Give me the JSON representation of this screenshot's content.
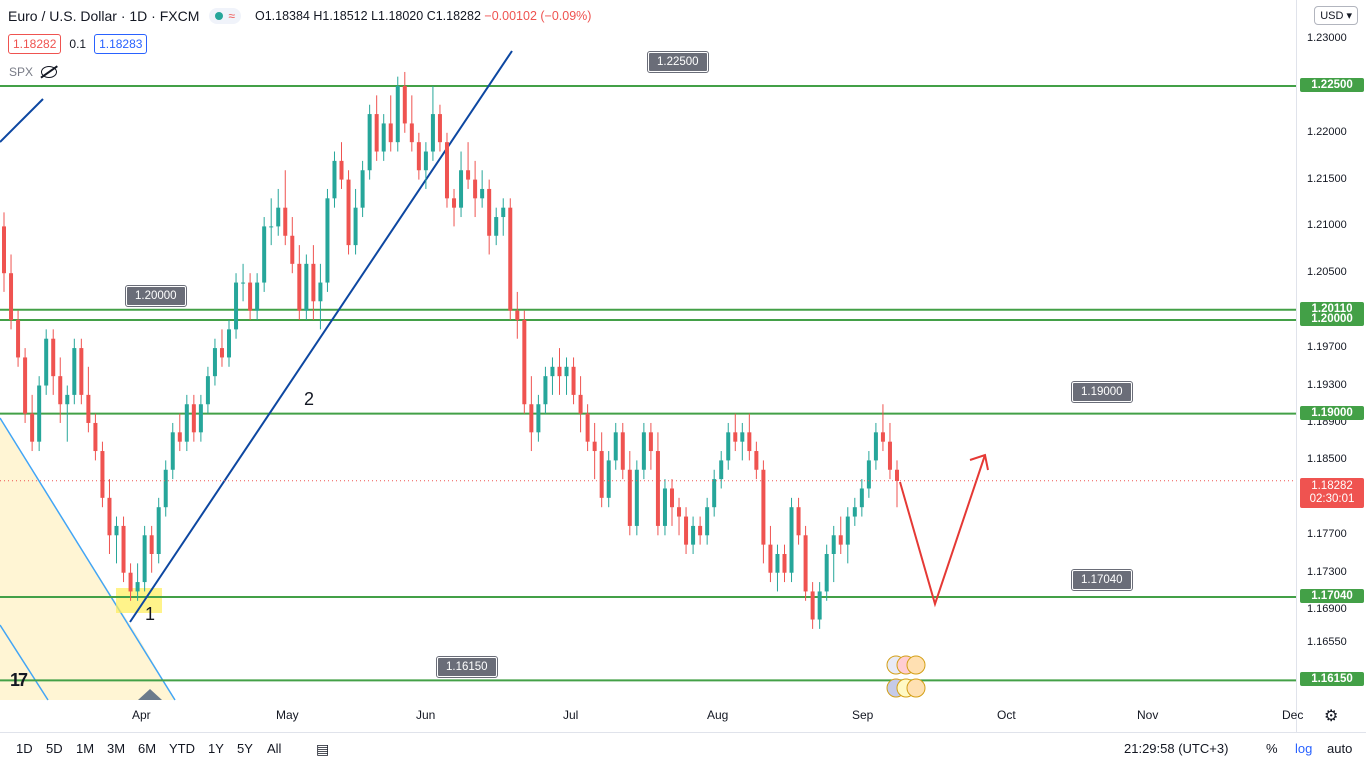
{
  "legend": {
    "title": "Euro / U.S. Dollar · 1D · FXCM",
    "open": "O1.18384",
    "high": "H1.18512",
    "low": "L1.18020",
    "close": "C1.18282",
    "change": "−0.00102 (−0.09%)",
    "sell": "1.18282",
    "spread": "0.1",
    "buy": "1.18283",
    "compare_symbol": "SPX"
  },
  "currency_select": "USD",
  "price_axis": [
    "1.23000",
    "1.22000",
    "1.21500",
    "1.21000",
    "1.20500",
    "1.19700",
    "1.19300",
    "1.18900",
    "1.18500",
    "1.17700",
    "1.17300",
    "1.16900",
    "1.16550",
    "1.16150"
  ],
  "level_tags": [
    {
      "label": "1.22500",
      "value": 1.225
    },
    {
      "label": "1.20110",
      "value": 1.2011
    },
    {
      "label": "1.20000",
      "value": 1.2
    },
    {
      "label": "1.19000",
      "value": 1.19
    },
    {
      "label": "1.17040",
      "value": 1.1704
    },
    {
      "label": "1.16150",
      "value": 1.1615
    }
  ],
  "current_price": {
    "label": "1.18282",
    "countdown": "02:30:01"
  },
  "callouts": [
    "1.22500",
    "1.20000",
    "1.19000",
    "1.17040",
    "1.16150"
  ],
  "time_axis": [
    "Apr",
    "May",
    "Jun",
    "Jul",
    "Aug",
    "Sep",
    "Oct",
    "Nov",
    "Dec"
  ],
  "wave_labels": [
    "1",
    "2"
  ],
  "bottom": {
    "timeframes": [
      "1D",
      "5D",
      "1M",
      "3M",
      "6M",
      "YTD",
      "1Y",
      "5Y",
      "All"
    ],
    "clock": "21:29:58 (UTC+3)",
    "percent": "%",
    "log": "log",
    "auto": "auto"
  },
  "logo": "17",
  "colors": {
    "up": "#26a69a",
    "down": "#ef5350",
    "level": "#43a047",
    "trend": "#0d47a1"
  },
  "chart_data": {
    "type": "candlestick",
    "y_unit": "EUR/USD",
    "ylim": [
      1.1588,
      1.2326
    ],
    "candles": [
      [
        1.21,
        1.2115,
        1.203,
        1.205
      ],
      [
        1.205,
        1.207,
        1.199,
        1.2
      ],
      [
        1.2,
        1.201,
        1.195,
        1.196
      ],
      [
        1.196,
        1.197,
        1.189,
        1.19
      ],
      [
        1.19,
        1.192,
        1.186,
        1.187
      ],
      [
        1.187,
        1.194,
        1.186,
        1.193
      ],
      [
        1.193,
        1.199,
        1.192,
        1.198
      ],
      [
        1.198,
        1.199,
        1.192,
        1.194
      ],
      [
        1.194,
        1.196,
        1.189,
        1.191
      ],
      [
        1.191,
        1.193,
        1.187,
        1.192
      ],
      [
        1.192,
        1.198,
        1.191,
        1.197
      ],
      [
        1.197,
        1.198,
        1.191,
        1.192
      ],
      [
        1.192,
        1.195,
        1.188,
        1.189
      ],
      [
        1.189,
        1.19,
        1.185,
        1.186
      ],
      [
        1.186,
        1.187,
        1.18,
        1.181
      ],
      [
        1.181,
        1.183,
        1.175,
        1.177
      ],
      [
        1.177,
        1.179,
        1.174,
        1.178
      ],
      [
        1.178,
        1.179,
        1.172,
        1.173
      ],
      [
        1.173,
        1.174,
        1.17,
        1.171
      ],
      [
        1.171,
        1.174,
        1.17,
        1.172
      ],
      [
        1.172,
        1.178,
        1.171,
        1.177
      ],
      [
        1.177,
        1.178,
        1.173,
        1.175
      ],
      [
        1.175,
        1.181,
        1.174,
        1.18
      ],
      [
        1.18,
        1.185,
        1.179,
        1.184
      ],
      [
        1.184,
        1.189,
        1.183,
        1.188
      ],
      [
        1.188,
        1.19,
        1.186,
        1.187
      ],
      [
        1.187,
        1.192,
        1.186,
        1.191
      ],
      [
        1.191,
        1.192,
        1.187,
        1.188
      ],
      [
        1.188,
        1.192,
        1.187,
        1.191
      ],
      [
        1.191,
        1.195,
        1.19,
        1.194
      ],
      [
        1.194,
        1.198,
        1.193,
        1.197
      ],
      [
        1.197,
        1.199,
        1.195,
        1.196
      ],
      [
        1.196,
        1.2,
        1.195,
        1.199
      ],
      [
        1.199,
        1.205,
        1.198,
        1.204
      ],
      [
        1.204,
        1.206,
        1.202,
        1.204
      ],
      [
        1.204,
        1.205,
        1.2,
        1.201
      ],
      [
        1.201,
        1.205,
        1.2,
        1.204
      ],
      [
        1.204,
        1.211,
        1.203,
        1.21
      ],
      [
        1.21,
        1.213,
        1.208,
        1.21
      ],
      [
        1.21,
        1.214,
        1.209,
        1.212
      ],
      [
        1.212,
        1.216,
        1.208,
        1.209
      ],
      [
        1.209,
        1.211,
        1.205,
        1.206
      ],
      [
        1.206,
        1.208,
        1.2,
        1.201
      ],
      [
        1.201,
        1.207,
        1.2,
        1.206
      ],
      [
        1.206,
        1.208,
        1.2,
        1.202
      ],
      [
        1.202,
        1.206,
        1.199,
        1.204
      ],
      [
        1.204,
        1.214,
        1.203,
        1.213
      ],
      [
        1.213,
        1.218,
        1.212,
        1.217
      ],
      [
        1.217,
        1.219,
        1.214,
        1.215
      ],
      [
        1.215,
        1.216,
        1.207,
        1.208
      ],
      [
        1.208,
        1.214,
        1.207,
        1.212
      ],
      [
        1.212,
        1.217,
        1.211,
        1.216
      ],
      [
        1.216,
        1.223,
        1.215,
        1.222
      ],
      [
        1.222,
        1.224,
        1.217,
        1.218
      ],
      [
        1.218,
        1.222,
        1.217,
        1.221
      ],
      [
        1.221,
        1.224,
        1.218,
        1.219
      ],
      [
        1.219,
        1.226,
        1.218,
        1.225
      ],
      [
        1.225,
        1.2265,
        1.22,
        1.221
      ],
      [
        1.221,
        1.224,
        1.218,
        1.219
      ],
      [
        1.219,
        1.22,
        1.215,
        1.216
      ],
      [
        1.216,
        1.219,
        1.214,
        1.218
      ],
      [
        1.218,
        1.225,
        1.217,
        1.222
      ],
      [
        1.222,
        1.223,
        1.218,
        1.219
      ],
      [
        1.219,
        1.22,
        1.212,
        1.213
      ],
      [
        1.213,
        1.214,
        1.21,
        1.212
      ],
      [
        1.212,
        1.218,
        1.211,
        1.216
      ],
      [
        1.216,
        1.219,
        1.214,
        1.215
      ],
      [
        1.215,
        1.217,
        1.211,
        1.213
      ],
      [
        1.213,
        1.216,
        1.212,
        1.214
      ],
      [
        1.214,
        1.215,
        1.207,
        1.209
      ],
      [
        1.209,
        1.212,
        1.208,
        1.211
      ],
      [
        1.211,
        1.213,
        1.209,
        1.212
      ],
      [
        1.212,
        1.213,
        1.2,
        1.201
      ],
      [
        1.201,
        1.203,
        1.198,
        1.2
      ],
      [
        1.2,
        1.201,
        1.19,
        1.191
      ],
      [
        1.191,
        1.194,
        1.186,
        1.188
      ],
      [
        1.188,
        1.192,
        1.187,
        1.191
      ],
      [
        1.191,
        1.195,
        1.19,
        1.194
      ],
      [
        1.194,
        1.196,
        1.192,
        1.195
      ],
      [
        1.195,
        1.197,
        1.192,
        1.194
      ],
      [
        1.194,
        1.196,
        1.192,
        1.195
      ],
      [
        1.195,
        1.196,
        1.191,
        1.192
      ],
      [
        1.192,
        1.194,
        1.188,
        1.19
      ],
      [
        1.19,
        1.191,
        1.186,
        1.187
      ],
      [
        1.187,
        1.189,
        1.183,
        1.186
      ],
      [
        1.186,
        1.188,
        1.18,
        1.181
      ],
      [
        1.181,
        1.186,
        1.18,
        1.185
      ],
      [
        1.185,
        1.189,
        1.184,
        1.188
      ],
      [
        1.188,
        1.189,
        1.183,
        1.184
      ],
      [
        1.184,
        1.186,
        1.177,
        1.178
      ],
      [
        1.178,
        1.185,
        1.177,
        1.184
      ],
      [
        1.184,
        1.189,
        1.183,
        1.188
      ],
      [
        1.188,
        1.189,
        1.184,
        1.186
      ],
      [
        1.186,
        1.188,
        1.177,
        1.178
      ],
      [
        1.178,
        1.183,
        1.177,
        1.182
      ],
      [
        1.182,
        1.183,
        1.178,
        1.18
      ],
      [
        1.18,
        1.181,
        1.177,
        1.179
      ],
      [
        1.179,
        1.18,
        1.175,
        1.176
      ],
      [
        1.176,
        1.179,
        1.175,
        1.178
      ],
      [
        1.178,
        1.179,
        1.176,
        1.177
      ],
      [
        1.177,
        1.181,
        1.176,
        1.18
      ],
      [
        1.18,
        1.184,
        1.179,
        1.183
      ],
      [
        1.183,
        1.186,
        1.182,
        1.185
      ],
      [
        1.185,
        1.189,
        1.184,
        1.188
      ],
      [
        1.188,
        1.19,
        1.186,
        1.187
      ],
      [
        1.187,
        1.189,
        1.185,
        1.188
      ],
      [
        1.188,
        1.19,
        1.185,
        1.186
      ],
      [
        1.186,
        1.187,
        1.183,
        1.184
      ],
      [
        1.184,
        1.185,
        1.174,
        1.176
      ],
      [
        1.176,
        1.178,
        1.172,
        1.173
      ],
      [
        1.173,
        1.176,
        1.171,
        1.175
      ],
      [
        1.175,
        1.176,
        1.172,
        1.173
      ],
      [
        1.173,
        1.181,
        1.172,
        1.18
      ],
      [
        1.18,
        1.181,
        1.176,
        1.177
      ],
      [
        1.177,
        1.178,
        1.17,
        1.171
      ],
      [
        1.171,
        1.172,
        1.167,
        1.168
      ],
      [
        1.168,
        1.172,
        1.167,
        1.171
      ],
      [
        1.171,
        1.176,
        1.17,
        1.175
      ],
      [
        1.175,
        1.178,
        1.172,
        1.177
      ],
      [
        1.177,
        1.179,
        1.175,
        1.176
      ],
      [
        1.176,
        1.18,
        1.174,
        1.179
      ],
      [
        1.179,
        1.181,
        1.178,
        1.18
      ],
      [
        1.18,
        1.183,
        1.179,
        1.182
      ],
      [
        1.182,
        1.186,
        1.181,
        1.185
      ],
      [
        1.185,
        1.189,
        1.184,
        1.188
      ],
      [
        1.188,
        1.191,
        1.186,
        1.187
      ],
      [
        1.187,
        1.189,
        1.183,
        1.184
      ],
      [
        1.184,
        1.185,
        1.18,
        1.1828
      ]
    ]
  }
}
